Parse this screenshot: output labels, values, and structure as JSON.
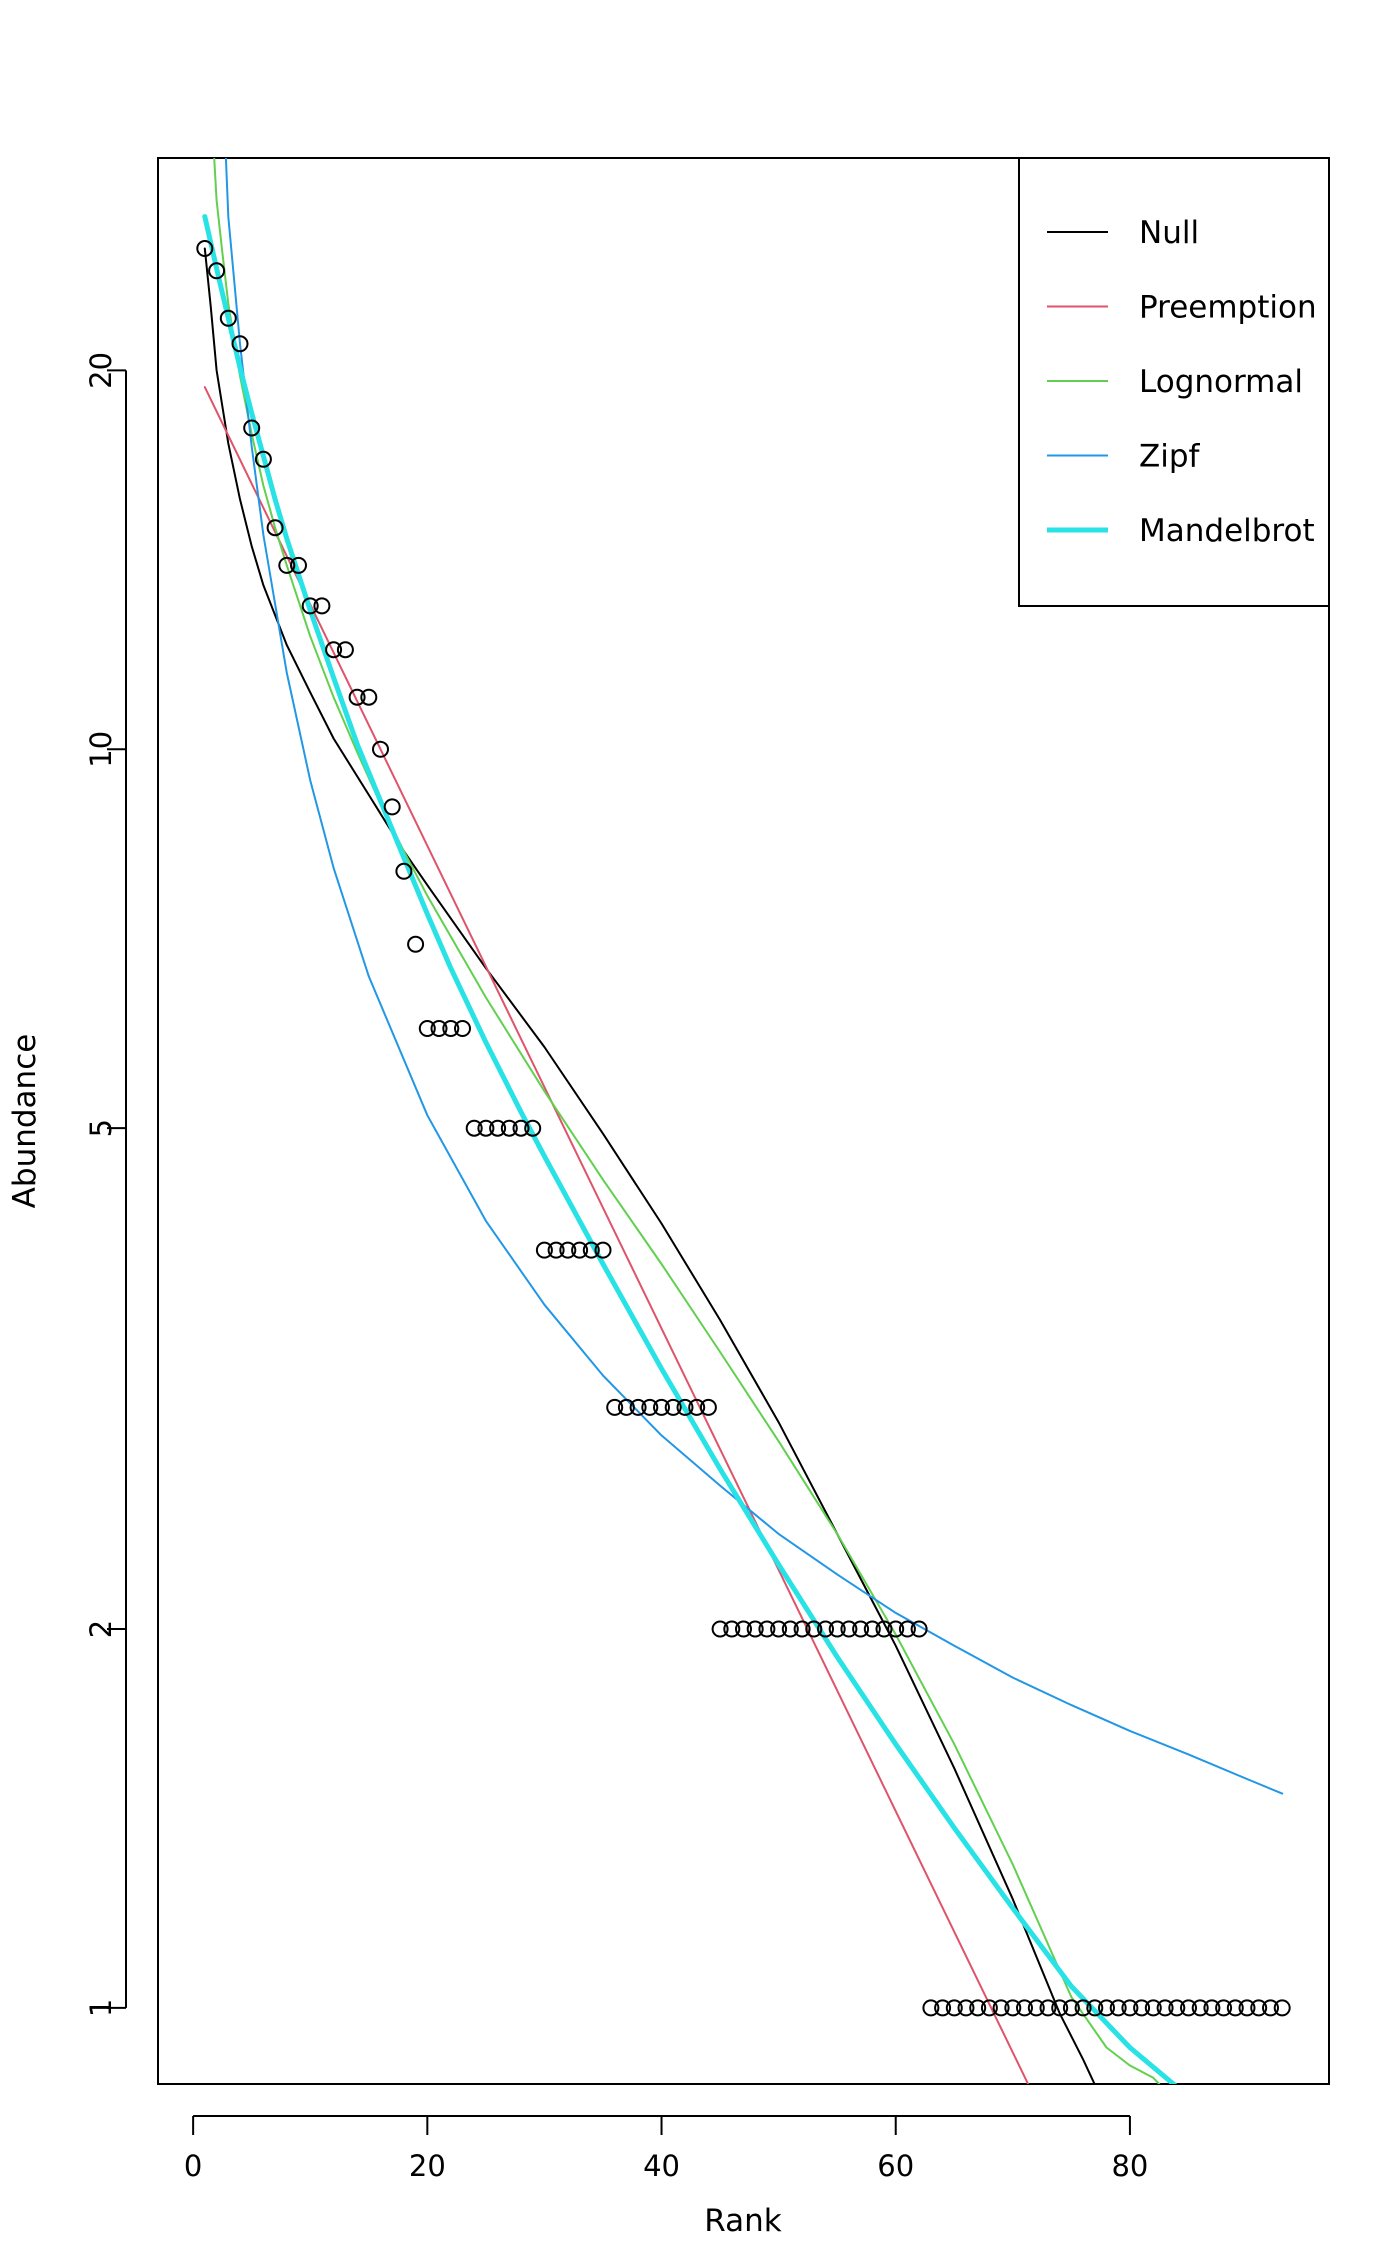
{
  "chart_data": {
    "type": "scatter",
    "title": "",
    "xlabel": "Rank",
    "ylabel": "Abundance",
    "y_scale": "log",
    "xlim": [
      -3,
      97
    ],
    "ylim": [
      0.87,
      29.5
    ],
    "x_ticks": [
      0,
      20,
      40,
      60,
      80
    ],
    "x_tick_labels": [
      "0",
      "20",
      "40",
      "60",
      "80"
    ],
    "y_ticks": [
      1,
      2,
      5,
      10,
      20
    ],
    "y_tick_labels": [
      "1",
      "2",
      "5",
      "10",
      "20"
    ],
    "grid": false,
    "legend_position": "top-right",
    "observed": {
      "rank": [
        1,
        2,
        3,
        4,
        5,
        6,
        7,
        8,
        9,
        10,
        11,
        12,
        13,
        14,
        15,
        16,
        17,
        18,
        19,
        20,
        21,
        22,
        23,
        24,
        25,
        26,
        27,
        28,
        29,
        30,
        31,
        32,
        33,
        34,
        35,
        36,
        37,
        38,
        39,
        40,
        41,
        42,
        43,
        44,
        45,
        46,
        47,
        48,
        49,
        50,
        51,
        52,
        53,
        54,
        55,
        56,
        57,
        58,
        59,
        60,
        61,
        62,
        63,
        64,
        65,
        66,
        67,
        68,
        69,
        70,
        71,
        72,
        73,
        74,
        75,
        76,
        77,
        78,
        79,
        80,
        81,
        82,
        83,
        84,
        85,
        86,
        87,
        88,
        89,
        90,
        91,
        92,
        93
      ],
      "abundance": [
        25,
        24,
        22,
        21,
        18,
        17,
        15,
        14,
        14,
        13,
        13,
        12,
        12,
        11,
        11,
        10,
        9,
        8,
        7,
        6,
        6,
        6,
        6,
        5,
        5,
        5,
        5,
        5,
        5,
        4,
        4,
        4,
        4,
        4,
        4,
        3,
        3,
        3,
        3,
        3,
        3,
        3,
        3,
        3,
        2,
        2,
        2,
        2,
        2,
        2,
        2,
        2,
        2,
        2,
        2,
        2,
        2,
        2,
        2,
        2,
        2,
        2,
        1,
        1,
        1,
        1,
        1,
        1,
        1,
        1,
        1,
        1,
        1,
        1,
        1,
        1,
        1,
        1,
        1,
        1,
        1,
        1,
        1,
        1,
        1,
        1,
        1,
        1,
        1,
        1,
        1,
        1,
        1
      ]
    },
    "series": [
      {
        "name": "Null",
        "color": "#000000",
        "x": [
          1,
          1.5,
          2,
          3,
          4,
          5,
          6,
          8,
          10,
          12,
          15,
          18,
          20,
          25,
          30,
          35,
          40,
          45,
          50,
          55,
          60,
          65,
          70,
          74,
          76,
          78,
          79,
          80
        ],
        "y": [
          25,
          22.5,
          20,
          17.5,
          15.8,
          14.5,
          13.5,
          12.1,
          11.1,
          10.2,
          9.2,
          8.3,
          7.8,
          6.7,
          5.8,
          4.95,
          4.2,
          3.52,
          2.92,
          2.38,
          1.94,
          1.55,
          1.22,
          0.99,
          0.91,
          0.83,
          0.78,
          0.74
        ]
      },
      {
        "name": "Preemption",
        "color": "#DF536B",
        "x": [
          1,
          71.3
        ],
        "y": [
          19.4,
          0.87
        ]
      },
      {
        "name": "Lognormal",
        "color": "#61D04F",
        "x": [
          1.8,
          2,
          2.5,
          3,
          4,
          5,
          6,
          7,
          8,
          10,
          12,
          14,
          16,
          18,
          20,
          25,
          30,
          35,
          40,
          45,
          50,
          55,
          60,
          65,
          70,
          75,
          78,
          80,
          82,
          82.5
        ],
        "y": [
          29.5,
          27.3,
          24.8,
          22.6,
          19.8,
          17.8,
          16.2,
          15,
          14,
          12.3,
          11,
          9.95,
          9.05,
          8.3,
          7.65,
          6.35,
          5.35,
          4.55,
          3.9,
          3.32,
          2.82,
          2.38,
          1.98,
          1.62,
          1.3,
          1.02,
          0.93,
          0.9,
          0.88,
          0.87
        ]
      },
      {
        "name": "Zipf",
        "color": "#2297E6",
        "x": [
          2.8,
          3,
          4,
          5,
          6,
          8,
          10,
          12,
          15,
          20,
          25,
          30,
          35,
          40,
          45,
          50,
          55,
          60,
          65,
          70,
          75,
          80,
          85,
          90,
          93
        ],
        "y": [
          29.5,
          26.5,
          21,
          17.4,
          14.8,
          11.5,
          9.45,
          8.05,
          6.6,
          5.12,
          4.22,
          3.62,
          3.18,
          2.85,
          2.6,
          2.38,
          2.21,
          2.06,
          1.94,
          1.83,
          1.74,
          1.66,
          1.59,
          1.52,
          1.48
        ]
      },
      {
        "name": "Mandelbrot",
        "color": "#28E2E5",
        "x": [
          1,
          2,
          3,
          4,
          5,
          6,
          7,
          8,
          10,
          12,
          14,
          16,
          18,
          20,
          22,
          25,
          28,
          30,
          35,
          40,
          45,
          50,
          55,
          60,
          65,
          70,
          75,
          80,
          85
        ],
        "y": [
          26.5,
          24.1,
          22,
          20.1,
          18.5,
          17.1,
          15.8,
          14.7,
          12.9,
          11.4,
          10.1,
          9.1,
          8.2,
          7.4,
          6.7,
          5.85,
          5.15,
          4.75,
          3.9,
          3.22,
          2.68,
          2.25,
          1.9,
          1.62,
          1.39,
          1.2,
          1.04,
          0.93,
          0.85
        ]
      }
    ],
    "legend": [
      "Null",
      "Preemption",
      "Lognormal",
      "Zipf",
      "Mandelbrot"
    ]
  }
}
